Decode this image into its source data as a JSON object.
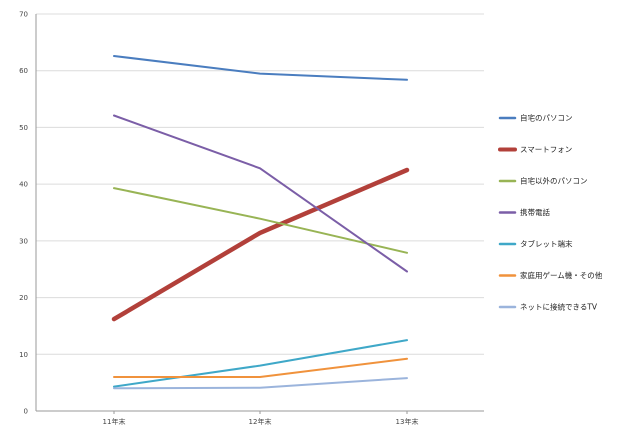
{
  "chart_data": {
    "type": "line",
    "categories": [
      "11年末",
      "12年末",
      "13年末"
    ],
    "ylim": [
      0,
      70
    ],
    "yticks": [
      0,
      10,
      20,
      30,
      40,
      50,
      60,
      70
    ],
    "grid": "horizontal",
    "legend_position": "right",
    "series": [
      {
        "name": "自宅のパソコン",
        "values": [
          62.6,
          59.5,
          58.4
        ],
        "color": "#4a7dbf",
        "width": 2
      },
      {
        "name": "スマートフォン",
        "values": [
          16.2,
          31.4,
          42.5
        ],
        "color": "#b2403a",
        "width": 4.5
      },
      {
        "name": "自宅以外のパソコン",
        "values": [
          39.3,
          33.9,
          27.9
        ],
        "color": "#98b455",
        "width": 2
      },
      {
        "name": "携帯電話",
        "values": [
          52.1,
          42.8,
          24.6
        ],
        "color": "#7b5ea7",
        "width": 2
      },
      {
        "name": "タブレット端末",
        "values": [
          4.3,
          8.0,
          12.5
        ],
        "color": "#3fa8c8",
        "width": 2
      },
      {
        "name": "家庭用ゲーム機・その他",
        "values": [
          6.0,
          6.0,
          9.2
        ],
        "color": "#f0923c",
        "width": 2
      },
      {
        "name": "ネットに接続できるTV",
        "values": [
          4.0,
          4.1,
          5.8
        ],
        "color": "#9bb4dc",
        "width": 2
      }
    ]
  }
}
